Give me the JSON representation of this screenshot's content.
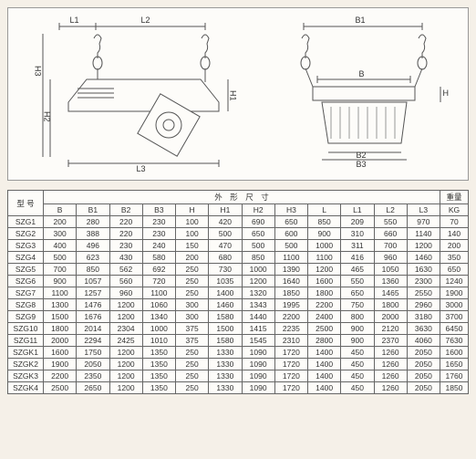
{
  "diagram_labels": {
    "left": {
      "L1": "L1",
      "L2": "L2",
      "L3": "L3",
      "H1": "H1",
      "H2": "H2",
      "H3": "H3"
    },
    "right": {
      "B1": "B1",
      "B": "B",
      "B2": "B2",
      "B3": "B3",
      "H": "H"
    }
  },
  "table": {
    "header_group": "外　形　尺　寸",
    "model_header": "型 号",
    "weight_header": "重量",
    "weight_unit": "KG",
    "columns": [
      "B",
      "B1",
      "B2",
      "B3",
      "H",
      "H1",
      "H2",
      "H3",
      "L",
      "L1",
      "L2",
      "L3"
    ],
    "rows": [
      {
        "model": "SZG1",
        "d": [
          "200",
          "280",
          "220",
          "230",
          "100",
          "420",
          "690",
          "650",
          "850",
          "209",
          "550",
          "970"
        ],
        "kg": "70"
      },
      {
        "model": "SZG2",
        "d": [
          "300",
          "388",
          "220",
          "230",
          "100",
          "500",
          "650",
          "600",
          "900",
          "310",
          "660",
          "1140"
        ],
        "kg": "140"
      },
      {
        "model": "SZG3",
        "d": [
          "400",
          "496",
          "230",
          "240",
          "150",
          "470",
          "500",
          "500",
          "1000",
          "311",
          "700",
          "1200"
        ],
        "kg": "200"
      },
      {
        "model": "SZG4",
        "d": [
          "500",
          "623",
          "430",
          "580",
          "200",
          "680",
          "850",
          "1100",
          "1100",
          "416",
          "960",
          "1460"
        ],
        "kg": "350"
      },
      {
        "model": "SZG5",
        "d": [
          "700",
          "850",
          "562",
          "692",
          "250",
          "730",
          "1000",
          "1390",
          "1200",
          "465",
          "1050",
          "1630"
        ],
        "kg": "650"
      },
      {
        "model": "SZG6",
        "d": [
          "900",
          "1057",
          "560",
          "720",
          "250",
          "1035",
          "1200",
          "1640",
          "1600",
          "550",
          "1360",
          "2300"
        ],
        "kg": "1240"
      },
      {
        "model": "SZG7",
        "d": [
          "1100",
          "1257",
          "960",
          "1100",
          "250",
          "1400",
          "1320",
          "1850",
          "1800",
          "650",
          "1465",
          "2550"
        ],
        "kg": "1900"
      },
      {
        "model": "SZG8",
        "d": [
          "1300",
          "1476",
          "1200",
          "1060",
          "300",
          "1460",
          "1343",
          "1995",
          "2200",
          "750",
          "1800",
          "2960"
        ],
        "kg": "3000"
      },
      {
        "model": "SZG9",
        "d": [
          "1500",
          "1676",
          "1200",
          "1340",
          "300",
          "1580",
          "1440",
          "2200",
          "2400",
          "800",
          "2000",
          "3180"
        ],
        "kg": "3700"
      },
      {
        "model": "SZG10",
        "d": [
          "1800",
          "2014",
          "2304",
          "1000",
          "375",
          "1500",
          "1415",
          "2235",
          "2500",
          "900",
          "2120",
          "3630"
        ],
        "kg": "6450"
      },
      {
        "model": "SZG11",
        "d": [
          "2000",
          "2294",
          "2425",
          "1010",
          "375",
          "1580",
          "1545",
          "2310",
          "2800",
          "900",
          "2370",
          "4060"
        ],
        "kg": "7630"
      },
      {
        "model": "SZGK1",
        "d": [
          "1600",
          "1750",
          "1200",
          "1350",
          "250",
          "1330",
          "1090",
          "1720",
          "1400",
          "450",
          "1260",
          "2050"
        ],
        "kg": "1600"
      },
      {
        "model": "SZGK2",
        "d": [
          "1900",
          "2050",
          "1200",
          "1350",
          "250",
          "1330",
          "1090",
          "1720",
          "1400",
          "450",
          "1260",
          "2050"
        ],
        "kg": "1650"
      },
      {
        "model": "SZGK3",
        "d": [
          "2200",
          "2350",
          "1200",
          "1350",
          "250",
          "1330",
          "1090",
          "1720",
          "1400",
          "450",
          "1260",
          "2050"
        ],
        "kg": "1760"
      },
      {
        "model": "SZGK4",
        "d": [
          "2500",
          "2650",
          "1200",
          "1350",
          "250",
          "1330",
          "1090",
          "1720",
          "1400",
          "450",
          "1260",
          "2050"
        ],
        "kg": "1850"
      }
    ]
  },
  "styling": {
    "page_bg": "#f5f0e8",
    "cell_bg": "#fdfcf9",
    "border_color": "#666",
    "text_color": "#333",
    "font_size_table": 8.5,
    "font_size_label": 9
  }
}
